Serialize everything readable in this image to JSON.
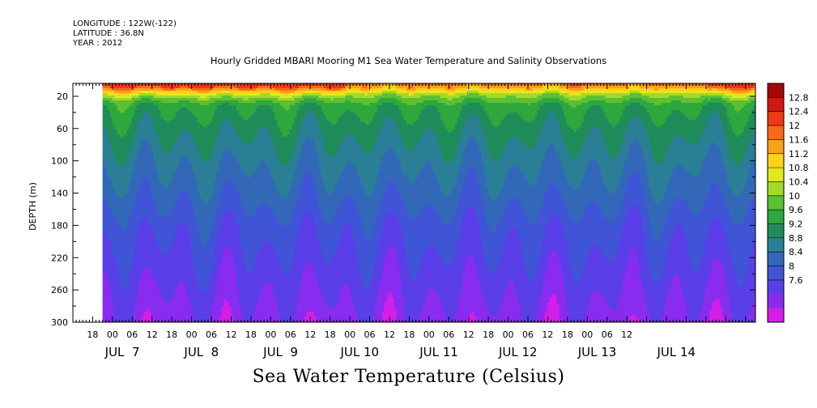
{
  "header": {
    "longitude": "LONGITUDE : 122W(-122)",
    "latitude": "LATITUDE : 36.8N",
    "year": "YEAR : 2012"
  },
  "chart_data": {
    "type": "heatmap",
    "title": "Hourly Gridded MBARI Mooring M1 Sea Water Temperature and Salinity Observations",
    "subtitle": "Sea Water Temperature (Celsius)",
    "ylabel": "DEPTH (m)",
    "xlabel": "",
    "ylim": [
      300,
      4
    ],
    "y_ticks": [
      20,
      60,
      100,
      140,
      180,
      220,
      260,
      300
    ],
    "x_range_hours": [
      -12,
      195
    ],
    "data_start_hour": -3,
    "x_hour_labels": [
      "18",
      "00",
      "06",
      "12",
      "18",
      "00",
      "06",
      "12",
      "18",
      "00",
      "06",
      "12",
      "18",
      "00",
      "06",
      "12",
      "18",
      "00",
      "06",
      "12",
      "18",
      "00",
      "06",
      "12",
      "18",
      "00",
      "06",
      "12"
    ],
    "x_day_labels": [
      "JUL  7",
      "JUL  8",
      "JUL  9",
      "JUL 10",
      "JUL 11",
      "JUL 12",
      "JUL 13",
      "JUL 14"
    ],
    "colorbar": {
      "levels": [
        7.6,
        8,
        8.4,
        8.8,
        9.2,
        9.6,
        10,
        10.4,
        10.8,
        11.2,
        11.6,
        12,
        12.4,
        12.8
      ],
      "labels": [
        "12.8",
        "12.4",
        "12",
        "11.6",
        "11.2",
        "10.8",
        "10.4",
        "10",
        "9.6",
        "9.2",
        "8.8",
        "8.4",
        "8",
        "7.6"
      ],
      "colors": [
        "#d61ee8",
        "#8a2cf0",
        "#5a3ee8",
        "#3f55d6",
        "#3368b8",
        "#2a7f96",
        "#1f8c5a",
        "#2ea83c",
        "#5cc034",
        "#a6d82a",
        "#e2ea1a",
        "#fcd21a",
        "#fba21a",
        "#f76b18",
        "#ec3a14",
        "#d21810",
        "#a8060a"
      ]
    },
    "depth_profile": [
      {
        "depth": 4,
        "temp": 12.8
      },
      {
        "depth": 10,
        "temp": 12.0
      },
      {
        "depth": 16,
        "temp": 11.1
      },
      {
        "depth": 22,
        "temp": 10.6
      },
      {
        "depth": 30,
        "temp": 10.1
      },
      {
        "depth": 45,
        "temp": 9.9
      },
      {
        "depth": 70,
        "temp": 9.6
      },
      {
        "depth": 100,
        "temp": 9.3
      },
      {
        "depth": 140,
        "temp": 8.95
      },
      {
        "depth": 180,
        "temp": 8.55
      },
      {
        "depth": 220,
        "temp": 8.3
      },
      {
        "depth": 260,
        "temp": 8.05
      },
      {
        "depth": 300,
        "temp": 7.8
      }
    ]
  }
}
